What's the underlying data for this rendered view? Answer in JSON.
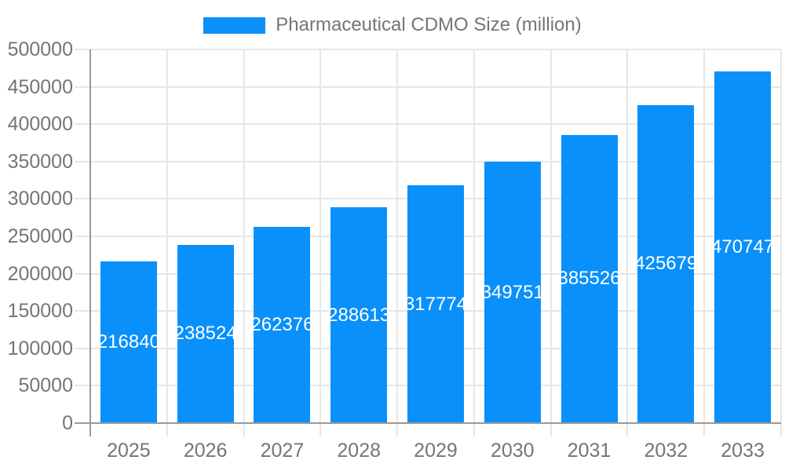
{
  "legend": {
    "label": "Pharmaceutical CDMO Size (million)"
  },
  "colors": {
    "bar": "#0a90fa",
    "grid": "#e6e6e6",
    "axis": "#999999",
    "tick_text": "#757575",
    "bar_label": "#ffffff",
    "background": "#ffffff"
  },
  "chart_data": {
    "type": "bar",
    "title": "Pharmaceutical CDMO Size (million)",
    "categories": [
      "2025",
      "2026",
      "2027",
      "2028",
      "2029",
      "2030",
      "2031",
      "2032",
      "2033"
    ],
    "series": [
      {
        "name": "Pharmaceutical CDMO Size (million)",
        "values": [
          216840,
          238524,
          262376,
          288613,
          317774,
          349751,
          385526,
          425679,
          470747
        ]
      }
    ],
    "bar_value_labels": [
      "216840",
      "238524",
      "262376",
      "288613",
      "317774",
      "349751",
      "385526",
      "425679",
      "470747"
    ],
    "xlabel": "",
    "ylabel": "",
    "ylim": [
      0,
      500000
    ],
    "ytick_step": 50000,
    "yticks": [
      "0",
      "50000",
      "100000",
      "150000",
      "200000",
      "250000",
      "300000",
      "350000",
      "400000",
      "450000",
      "500000"
    ],
    "grid": true,
    "legend_position": "top-center",
    "value_labels": "centered-white-inside-bars"
  }
}
